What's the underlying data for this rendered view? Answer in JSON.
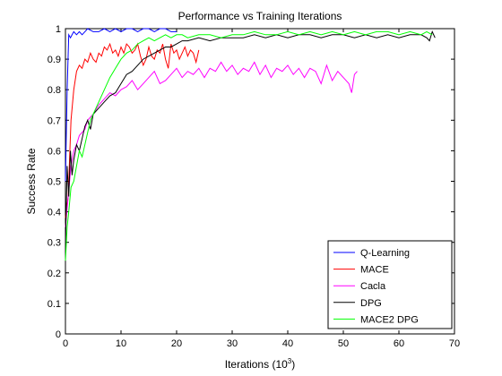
{
  "chart_data": {
    "type": "line",
    "title": "Performance vs Training Iterations",
    "xlabel_main": "Iterations (10",
    "xlabel_sup": "3",
    "xlabel_close": ")",
    "ylabel": "Success Rate",
    "xlim": [
      0,
      70
    ],
    "ylim": [
      0,
      1
    ],
    "xticks": [
      0,
      10,
      20,
      30,
      40,
      50,
      60,
      70
    ],
    "yticks": [
      0,
      0.1,
      0.2,
      0.3,
      0.4,
      0.5,
      0.6,
      0.7,
      0.8,
      0.9,
      1
    ],
    "ytick_labels": [
      "0",
      "0.1",
      "0.2",
      "0.3",
      "0.4",
      "0.5",
      "0.6",
      "0.7",
      "0.8",
      "0.9",
      "1"
    ],
    "grid": false,
    "legend_position": "bottom-right",
    "series": [
      {
        "name": "Q-Learning",
        "color": "#0000ff",
        "x": [
          0,
          0.3,
          0.6,
          0.9,
          1.2,
          1.5,
          2,
          2.5,
          3,
          3.5,
          4,
          5,
          6,
          7,
          8,
          9,
          10,
          11,
          12,
          13,
          14,
          15,
          16,
          17,
          18,
          19,
          20
        ],
        "y": [
          0.5,
          0.8,
          0.98,
          0.97,
          0.98,
          0.99,
          0.98,
          0.99,
          0.98,
          0.99,
          1.0,
          0.99,
          0.99,
          1.0,
          0.99,
          1.0,
          0.99,
          1.0,
          1.0,
          0.99,
          1.0,
          1.0,
          0.99,
          1.0,
          1.0,
          0.99,
          0.99
        ]
      },
      {
        "name": "MACE",
        "color": "#ff0000",
        "x": [
          0,
          0.5,
          1,
          1.5,
          2,
          2.5,
          3,
          3.5,
          4,
          4.5,
          5,
          5.5,
          6,
          6.5,
          7,
          7.5,
          8,
          8.5,
          9,
          9.5,
          10,
          10.5,
          11,
          11.5,
          12,
          12.5,
          13,
          13.5,
          14,
          14.5,
          15,
          15.5,
          16,
          16.5,
          17,
          17.5,
          18,
          18.5,
          19,
          19.5,
          20,
          20.5,
          21,
          21.5,
          22,
          22.5,
          23,
          23.5,
          24
        ],
        "y": [
          0.38,
          0.45,
          0.7,
          0.8,
          0.86,
          0.88,
          0.87,
          0.9,
          0.89,
          0.92,
          0.9,
          0.89,
          0.92,
          0.91,
          0.94,
          0.93,
          0.95,
          0.92,
          0.93,
          0.91,
          0.94,
          0.92,
          0.95,
          0.94,
          0.92,
          0.93,
          0.95,
          0.91,
          0.88,
          0.9,
          0.94,
          0.91,
          0.9,
          0.93,
          0.92,
          0.95,
          0.9,
          0.87,
          0.95,
          0.92,
          0.93,
          0.9,
          0.92,
          0.94,
          0.91,
          0.93,
          0.92,
          0.89,
          0.93
        ]
      },
      {
        "name": "Cacla",
        "color": "#ff00ff",
        "x": [
          0,
          0.5,
          1,
          1.5,
          2,
          2.5,
          3,
          3.5,
          4,
          5,
          6,
          7,
          8,
          9,
          10,
          11,
          12,
          13,
          14,
          15,
          16,
          17,
          18,
          19,
          20,
          21,
          22,
          23,
          24,
          25,
          26,
          27,
          28,
          29,
          30,
          31,
          32,
          33,
          34,
          35,
          36,
          37,
          38,
          39,
          40,
          41,
          42,
          43,
          44,
          45,
          46,
          47,
          48,
          49,
          50,
          51,
          51.5,
          52,
          52.5
        ],
        "y": [
          0.35,
          0.45,
          0.55,
          0.6,
          0.62,
          0.65,
          0.66,
          0.67,
          0.7,
          0.72,
          0.75,
          0.77,
          0.79,
          0.78,
          0.8,
          0.81,
          0.83,
          0.8,
          0.82,
          0.84,
          0.86,
          0.82,
          0.83,
          0.85,
          0.87,
          0.84,
          0.86,
          0.85,
          0.87,
          0.84,
          0.87,
          0.86,
          0.89,
          0.86,
          0.88,
          0.85,
          0.87,
          0.86,
          0.89,
          0.85,
          0.88,
          0.84,
          0.87,
          0.86,
          0.88,
          0.85,
          0.87,
          0.84,
          0.87,
          0.86,
          0.82,
          0.88,
          0.83,
          0.86,
          0.84,
          0.82,
          0.79,
          0.85,
          0.86
        ]
      },
      {
        "name": "DPG",
        "color": "#000000",
        "x": [
          0,
          0.3,
          0.6,
          0.9,
          1.2,
          1.5,
          2,
          2.5,
          3,
          3.5,
          4,
          4.5,
          5,
          6,
          7,
          8,
          9,
          10,
          11,
          12,
          13,
          14,
          15,
          16,
          17,
          18,
          19,
          20,
          21,
          22,
          24,
          26,
          28,
          30,
          32,
          34,
          36,
          38,
          40,
          42,
          44,
          46,
          48,
          50,
          52,
          54,
          56,
          58,
          60,
          62,
          64,
          65,
          65.5,
          66,
          66.5
        ],
        "y": [
          0.28,
          0.55,
          0.45,
          0.6,
          0.52,
          0.57,
          0.62,
          0.6,
          0.64,
          0.68,
          0.7,
          0.67,
          0.72,
          0.74,
          0.76,
          0.78,
          0.79,
          0.82,
          0.85,
          0.86,
          0.88,
          0.9,
          0.91,
          0.92,
          0.93,
          0.94,
          0.94,
          0.95,
          0.96,
          0.96,
          0.97,
          0.96,
          0.97,
          0.97,
          0.97,
          0.98,
          0.97,
          0.98,
          0.97,
          0.98,
          0.98,
          0.97,
          0.98,
          0.98,
          0.97,
          0.98,
          0.97,
          0.98,
          0.97,
          0.98,
          0.98,
          0.97,
          0.96,
          0.99,
          0.97
        ]
      },
      {
        "name": "MACE2 DPG",
        "color": "#00ff00",
        "x": [
          0,
          0.3,
          0.6,
          1,
          1.5,
          2,
          2.5,
          3,
          3.5,
          4,
          4.5,
          5,
          6,
          7,
          8,
          9,
          10,
          11,
          12,
          13,
          14,
          15,
          16,
          17,
          18,
          19,
          20,
          21,
          22,
          24,
          26,
          28,
          30,
          32,
          34,
          36,
          38,
          40,
          42,
          44,
          46,
          48,
          50,
          52,
          54,
          56,
          58,
          60,
          62,
          64,
          65,
          66
        ],
        "y": [
          0.24,
          0.35,
          0.4,
          0.48,
          0.5,
          0.55,
          0.6,
          0.58,
          0.62,
          0.66,
          0.7,
          0.72,
          0.76,
          0.8,
          0.84,
          0.87,
          0.9,
          0.92,
          0.93,
          0.95,
          0.96,
          0.97,
          0.96,
          0.97,
          0.98,
          0.97,
          0.98,
          0.98,
          0.97,
          0.98,
          0.98,
          0.97,
          0.98,
          0.98,
          0.99,
          0.98,
          0.98,
          0.99,
          0.98,
          0.99,
          0.98,
          0.99,
          0.98,
          0.99,
          0.98,
          0.99,
          0.99,
          0.98,
          0.99,
          0.98,
          0.99,
          0.98
        ]
      }
    ]
  }
}
